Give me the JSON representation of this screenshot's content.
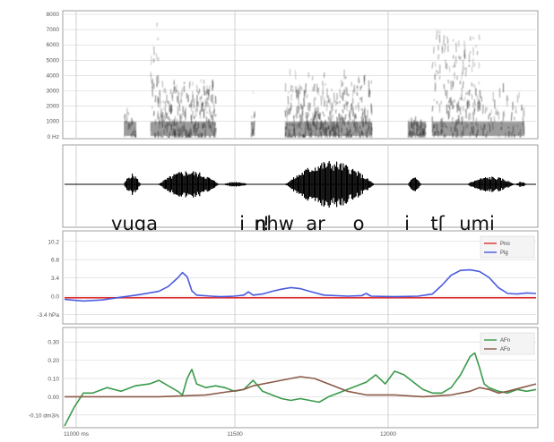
{
  "colors": {
    "pno": "#e03030",
    "pig": "#4a5be0",
    "afn": "#3a9a4a",
    "afo": "#8a5a48",
    "spectro": "#202020",
    "wave": "#000000",
    "grid": "#d4d4d4"
  },
  "spectrogram": {
    "yticks": [
      "8000",
      "7000",
      "6000",
      "5000",
      "4000",
      "3000",
      "2000",
      "1000",
      "0 Hz"
    ]
  },
  "phonetic": [
    "vuga",
    "i",
    "n",
    "ŋhw",
    "ar",
    "o",
    "i",
    "tʃ",
    "umi"
  ],
  "time_axis": {
    "ticks": [
      "11000 ms",
      "11500",
      "12000"
    ]
  },
  "chart_data": [
    {
      "type": "line",
      "id": "pressure",
      "yticks": [
        "10.2",
        "6.8",
        "3.4",
        "0.0",
        "-3.4 hPa"
      ],
      "ylim": [
        -4.5,
        11.5
      ],
      "legend": [
        "Pno",
        "Pig"
      ],
      "legend_position": "top-right",
      "grid": true,
      "series": [
        {
          "name": "Pno",
          "key": "pno",
          "values": [
            [
              0,
              -0.3
            ],
            [
              100,
              -0.3
            ]
          ]
        },
        {
          "name": "Pig",
          "key": "pig",
          "values": [
            [
              0,
              -0.6
            ],
            [
              4,
              -0.9
            ],
            [
              8,
              -0.7
            ],
            [
              12,
              -0.2
            ],
            [
              16,
              0.3
            ],
            [
              20,
              0.9
            ],
            [
              22,
              1.8
            ],
            [
              24,
              3.4
            ],
            [
              25,
              4.4
            ],
            [
              26,
              3.6
            ],
            [
              27,
              1.0
            ],
            [
              28,
              0.2
            ],
            [
              31,
              0.0
            ],
            [
              33,
              -0.1
            ],
            [
              36,
              0.0
            ],
            [
              38,
              0.2
            ],
            [
              39,
              0.8
            ],
            [
              40,
              0.2
            ],
            [
              42,
              0.4
            ],
            [
              44,
              0.9
            ],
            [
              46,
              1.3
            ],
            [
              48,
              1.6
            ],
            [
              50,
              1.4
            ],
            [
              52,
              0.9
            ],
            [
              55,
              0.2
            ],
            [
              60,
              0.0
            ],
            [
              63,
              0.1
            ],
            [
              64,
              0.5
            ],
            [
              65,
              0.0
            ],
            [
              70,
              -0.1
            ],
            [
              75,
              0.0
            ],
            [
              78,
              0.4
            ],
            [
              80,
              2.0
            ],
            [
              82,
              3.9
            ],
            [
              84,
              4.8
            ],
            [
              86,
              4.9
            ],
            [
              88,
              4.6
            ],
            [
              90,
              3.5
            ],
            [
              92,
              1.6
            ],
            [
              94,
              0.5
            ],
            [
              96,
              0.4
            ],
            [
              98,
              0.6
            ],
            [
              100,
              0.5
            ]
          ]
        }
      ]
    },
    {
      "type": "line",
      "id": "airflow",
      "yticks": [
        "0.30",
        "0.20",
        "0.10",
        "0.00",
        "-0.10 dm3/s"
      ],
      "ylim": [
        -0.15,
        0.36
      ],
      "legend": [
        "AFn",
        "AFo"
      ],
      "legend_position": "top-right",
      "grid": true,
      "series": [
        {
          "name": "AFn",
          "key": "afn",
          "values": [
            [
              0,
              -0.16
            ],
            [
              2,
              -0.06
            ],
            [
              4,
              0.02
            ],
            [
              6,
              0.02
            ],
            [
              9,
              0.05
            ],
            [
              12,
              0.03
            ],
            [
              15,
              0.06
            ],
            [
              18,
              0.07
            ],
            [
              20,
              0.09
            ],
            [
              22,
              0.06
            ],
            [
              24,
              0.03
            ],
            [
              25,
              0.01
            ],
            [
              26,
              0.1
            ],
            [
              27,
              0.15
            ],
            [
              28,
              0.07
            ],
            [
              30,
              0.05
            ],
            [
              32,
              0.06
            ],
            [
              34,
              0.05
            ],
            [
              36,
              0.03
            ],
            [
              38,
              0.04
            ],
            [
              40,
              0.09
            ],
            [
              41,
              0.06
            ],
            [
              42,
              0.03
            ],
            [
              44,
              0.01
            ],
            [
              46,
              -0.01
            ],
            [
              48,
              -0.02
            ],
            [
              50,
              -0.01
            ],
            [
              52,
              -0.02
            ],
            [
              54,
              -0.03
            ],
            [
              56,
              0.0
            ],
            [
              60,
              0.04
            ],
            [
              64,
              0.08
            ],
            [
              66,
              0.12
            ],
            [
              68,
              0.07
            ],
            [
              70,
              0.14
            ],
            [
              72,
              0.12
            ],
            [
              74,
              0.08
            ],
            [
              76,
              0.04
            ],
            [
              78,
              0.02
            ],
            [
              80,
              0.02
            ],
            [
              82,
              0.05
            ],
            [
              84,
              0.12
            ],
            [
              86,
              0.22
            ],
            [
              87,
              0.24
            ],
            [
              88,
              0.16
            ],
            [
              89,
              0.07
            ],
            [
              90,
              0.05
            ],
            [
              92,
              0.03
            ],
            [
              94,
              0.02
            ],
            [
              96,
              0.04
            ],
            [
              98,
              0.03
            ],
            [
              100,
              0.04
            ]
          ]
        },
        {
          "name": "AFo",
          "key": "afo",
          "values": [
            [
              0,
              0.0
            ],
            [
              20,
              0.0
            ],
            [
              30,
              0.01
            ],
            [
              38,
              0.04
            ],
            [
              40,
              0.06
            ],
            [
              44,
              0.08
            ],
            [
              48,
              0.1
            ],
            [
              50,
              0.11
            ],
            [
              53,
              0.1
            ],
            [
              56,
              0.07
            ],
            [
              60,
              0.03
            ],
            [
              64,
              0.01
            ],
            [
              70,
              0.01
            ],
            [
              76,
              0.0
            ],
            [
              82,
              0.01
            ],
            [
              86,
              0.03
            ],
            [
              88,
              0.05
            ],
            [
              90,
              0.04
            ],
            [
              92,
              0.02
            ],
            [
              94,
              0.03
            ],
            [
              97,
              0.05
            ],
            [
              100,
              0.07
            ]
          ]
        }
      ]
    }
  ]
}
